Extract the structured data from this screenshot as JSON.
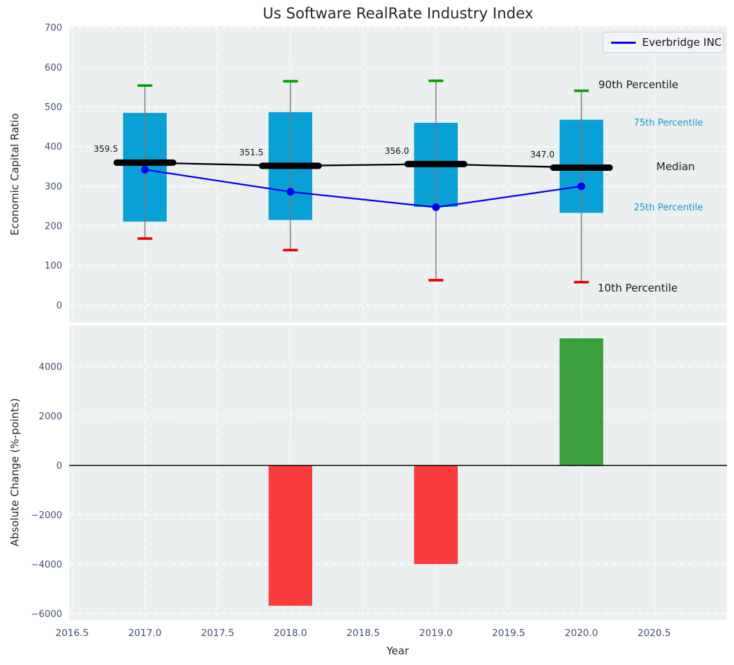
{
  "title": "Us Software RealRate Industry Index",
  "legend": {
    "label": "Everbridge INC"
  },
  "axes": {
    "top_ylabel": "Economic Capital Ratio",
    "bottom_ylabel": "Absolute Change (%-points)",
    "xlabel": "Year"
  },
  "colors": {
    "panel_bg": "#ebeff0",
    "grid": "#ffffff",
    "box_fill": "#09a0d6",
    "whisker": "#777777",
    "cap_top_green": "#00a000",
    "cap_bottom_red": "#ee0000",
    "median_black": "#000000",
    "company_line_blue": "#0000ee",
    "bar_negative_red": "#fb3c3c",
    "bar_positive_green": "#3aa03c",
    "tick_label": "#42516d",
    "percentile_cyan": "#149bc9"
  },
  "chart_data": [
    {
      "type": "boxplot_with_line",
      "panel": "top",
      "title": "Us Software RealRate Industry Index",
      "ylabel": "Economic Capital Ratio",
      "ylim": [
        -44,
        704
      ],
      "grid": true,
      "legend_position": "upper right",
      "yticks": [
        {
          "v": 0,
          "label": "0"
        },
        {
          "v": 100,
          "label": "100"
        },
        {
          "v": 200,
          "label": "200"
        },
        {
          "v": 300,
          "label": "300"
        },
        {
          "v": 400,
          "label": "400"
        },
        {
          "v": 500,
          "label": "500"
        },
        {
          "v": 600,
          "label": "600"
        },
        {
          "v": 700,
          "label": "700"
        }
      ],
      "categories_years": [
        2017,
        2018,
        2019,
        2020
      ],
      "boxes": [
        {
          "year": 2017,
          "p10": 168,
          "p25": 211,
          "median": 359.5,
          "p75": 485,
          "p90": 554,
          "median_label": "359.5"
        },
        {
          "year": 2018,
          "p10": 139,
          "p25": 215,
          "median": 351.5,
          "p75": 487,
          "p90": 565,
          "median_label": "351.5"
        },
        {
          "year": 2019,
          "p10": 63,
          "p25": 248,
          "median": 356.0,
          "p75": 460,
          "p90": 566,
          "median_label": "356.0"
        },
        {
          "year": 2020,
          "p10": 58,
          "p25": 233,
          "median": 347.0,
          "p75": 468,
          "p90": 541,
          "median_label": "347.0"
        }
      ],
      "series": [
        {
          "name": "Everbridge INC",
          "x": [
            2017,
            2018,
            2019,
            2020
          ],
          "values": [
            342,
            286,
            247,
            300
          ]
        }
      ],
      "annotations": [
        {
          "text": "90th Percentile",
          "style": "black_large"
        },
        {
          "text": "75th Percentile",
          "style": "cyan_small"
        },
        {
          "text": "Median",
          "style": "black_large"
        },
        {
          "text": "25th Percentile",
          "style": "cyan_small"
        },
        {
          "text": "10th Percentile",
          "style": "black_large"
        }
      ]
    },
    {
      "type": "bar",
      "panel": "bottom",
      "xlabel": "Year",
      "ylabel": "Absolute Change (%-points)",
      "ylim": [
        -6250,
        5670
      ],
      "xlim": [
        2016.48,
        2021.0
      ],
      "grid": true,
      "yticks": [
        {
          "v": -6000,
          "label": "−6000"
        },
        {
          "v": -4000,
          "label": "−4000"
        },
        {
          "v": -2000,
          "label": "−2000"
        },
        {
          "v": 0,
          "label": "0"
        },
        {
          "v": 2000,
          "label": "2000"
        },
        {
          "v": 4000,
          "label": "4000"
        }
      ],
      "xticks": [
        {
          "v": 2016.5,
          "label": "2016.5"
        },
        {
          "v": 2017.0,
          "label": "2017.0"
        },
        {
          "v": 2017.5,
          "label": "2017.5"
        },
        {
          "v": 2018.0,
          "label": "2018.0"
        },
        {
          "v": 2018.5,
          "label": "2018.5"
        },
        {
          "v": 2019.0,
          "label": "2019.0"
        },
        {
          "v": 2019.5,
          "label": "2019.5"
        },
        {
          "v": 2020.0,
          "label": "2020.0"
        },
        {
          "v": 2020.5,
          "label": "2020.5"
        }
      ],
      "bars": [
        {
          "year": 2018,
          "value": -5680,
          "color": "negative"
        },
        {
          "year": 2019,
          "value": -3990,
          "color": "negative"
        },
        {
          "year": 2020,
          "value": 5150,
          "color": "positive"
        }
      ]
    }
  ]
}
